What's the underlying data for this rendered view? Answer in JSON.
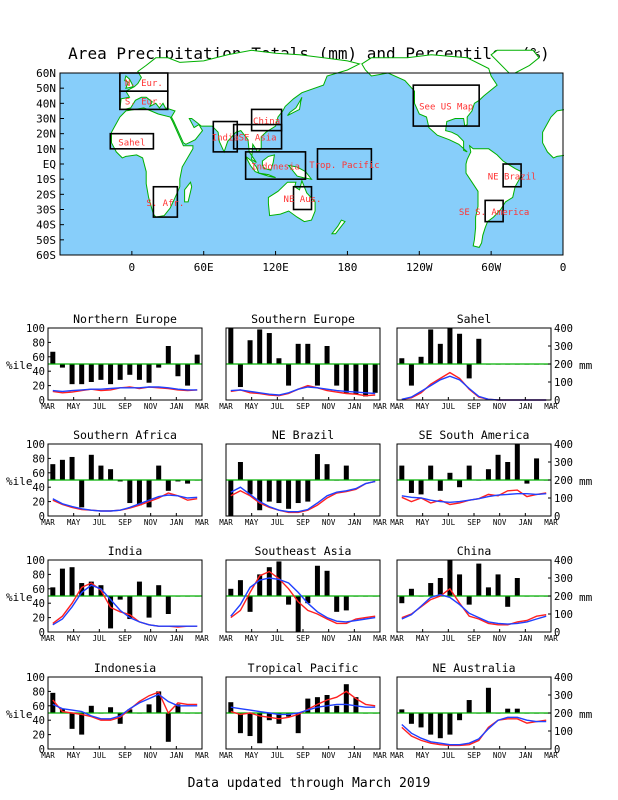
{
  "title": "Area Precipitation Totals (mm) and Percentiles (%)",
  "footer": "Data updated through March 2019",
  "colors": {
    "ocean": "#87cefa",
    "land": "#ffffff",
    "coast": "#00b000",
    "region_label": "#ff3333",
    "percentile_line": "#00b000",
    "red_series": "#ff2020",
    "blue_series": "#2040ff",
    "bars": "#000000"
  },
  "map": {
    "lat_labels": [
      "60N",
      "50N",
      "40N",
      "30N",
      "20N",
      "10N",
      "EQ",
      "10S",
      "20S",
      "30S",
      "40S",
      "50S",
      "60S"
    ],
    "lon_labels": [
      "0",
      "60E",
      "120E",
      "180",
      "120W",
      "60W",
      "0"
    ],
    "regions": [
      {
        "label": "N. Eur.",
        "lon": [
          -10,
          30
        ],
        "lat": [
          48,
          60
        ]
      },
      {
        "label": "S. Eur.",
        "lon": [
          -10,
          30
        ],
        "lat": [
          36,
          48
        ]
      },
      {
        "label": "Sahel",
        "lon": [
          -18,
          18
        ],
        "lat": [
          10,
          20
        ]
      },
      {
        "label": "India",
        "lon": [
          68,
          88
        ],
        "lat": [
          8,
          28
        ]
      },
      {
        "label": "China",
        "lon": [
          100,
          125
        ],
        "lat": [
          22,
          36
        ]
      },
      {
        "label": "SE Asia",
        "lon": [
          85,
          125
        ],
        "lat": [
          10,
          26
        ]
      },
      {
        "label": "Indonesia",
        "lon": [
          95,
          145
        ],
        "lat": [
          -10,
          8
        ]
      },
      {
        "label": "Trop. Pacific",
        "lon": [
          155,
          200
        ],
        "lat": [
          -10,
          10
        ]
      },
      {
        "label": "NE Aus.",
        "lon": [
          135,
          150
        ],
        "lat": [
          -30,
          -15
        ]
      },
      {
        "label": "S. Afr.",
        "lon": [
          18,
          38
        ],
        "lat": [
          -35,
          -15
        ]
      },
      {
        "label": "See US Map",
        "lon": [
          235,
          290
        ],
        "lat": [
          25,
          52
        ]
      },
      {
        "label": "NE Brazil",
        "lon": [
          310,
          325
        ],
        "lat": [
          -15,
          0
        ]
      },
      {
        "label": "SE S. America",
        "lon": [
          295,
          310
        ],
        "lat": [
          -38,
          -24
        ]
      }
    ]
  },
  "axes": {
    "left_label": "%ile",
    "right_label": "mm",
    "left_ticks": [
      "0",
      "20",
      "40",
      "60",
      "80",
      "100"
    ],
    "right_ticks": [
      "0",
      "100",
      "200",
      "300",
      "400"
    ],
    "months": [
      "MAR",
      "MAY",
      "JUL",
      "SEP",
      "NOV",
      "JAN",
      "MAR"
    ]
  },
  "chart_data": [
    {
      "type": "bar",
      "title": "Northern Europe",
      "ylim_percentile": [
        0,
        100
      ],
      "ylim_mm": [
        0,
        400
      ],
      "percentiles": [
        67,
        45,
        22,
        22,
        25,
        28,
        22,
        28,
        35,
        28,
        24,
        45,
        75,
        33,
        20,
        63
      ],
      "series": [
        {
          "values": [
            12,
            10,
            11,
            13,
            15,
            13,
            14,
            17,
            18,
            16,
            18,
            17,
            16,
            14,
            13,
            14
          ]
        },
        {
          "values": [
            13,
            12,
            13,
            14,
            15,
            15,
            16,
            17,
            17,
            17,
            18,
            18,
            17,
            15,
            14,
            14
          ]
        }
      ]
    },
    {
      "type": "bar",
      "title": "Southern Europe",
      "ylim_percentile": [
        0,
        100
      ],
      "ylim_mm": [
        0,
        400
      ],
      "percentiles": [
        100,
        18,
        83,
        98,
        93,
        58,
        20,
        78,
        78,
        20,
        75,
        20,
        10,
        8,
        5,
        10
      ],
      "series": [
        {
          "values": [
            12,
            14,
            10,
            9,
            7,
            6,
            9,
            15,
            20,
            17,
            13,
            11,
            9,
            8,
            6,
            7
          ]
        },
        {
          "values": [
            13,
            14,
            12,
            10,
            8,
            7,
            10,
            15,
            18,
            17,
            15,
            13,
            12,
            11,
            10,
            9
          ]
        }
      ]
    },
    {
      "type": "bar",
      "title": "Sahel",
      "ylim_percentile": [
        0,
        100
      ],
      "ylim_mm": [
        0,
        400
      ],
      "percentiles": [
        58,
        20,
        60,
        98,
        78,
        100,
        92,
        30,
        85,
        50,
        50,
        50,
        50,
        50,
        50,
        50
      ],
      "series": [
        {
          "values": [
            1,
            3,
            10,
            22,
            30,
            38,
            30,
            15,
            4,
            1,
            0,
            0,
            0,
            0,
            0,
            0
          ]
        },
        {
          "values": [
            1,
            4,
            12,
            20,
            28,
            33,
            28,
            16,
            5,
            1,
            0,
            0,
            0,
            0,
            0,
            0
          ]
        }
      ]
    },
    {
      "type": "bar",
      "title": "Southern Africa",
      "ylim_percentile": [
        0,
        100
      ],
      "ylim_mm": [
        0,
        400
      ],
      "percentiles": [
        72,
        78,
        82,
        12,
        85,
        70,
        65,
        48,
        18,
        15,
        12,
        70,
        35,
        48,
        45,
        50
      ],
      "series": [
        {
          "values": [
            22,
            16,
            12,
            9,
            8,
            7,
            7,
            8,
            11,
            15,
            20,
            25,
            32,
            28,
            22,
            24
          ]
        },
        {
          "values": [
            24,
            17,
            13,
            10,
            8,
            7,
            7,
            8,
            12,
            17,
            22,
            27,
            29,
            28,
            25,
            26
          ]
        }
      ]
    },
    {
      "type": "bar",
      "title": "NE Brazil",
      "ylim_percentile": [
        0,
        100
      ],
      "ylim_mm": [
        0,
        400
      ],
      "percentiles": [
        0,
        75,
        30,
        8,
        20,
        18,
        10,
        18,
        20,
        86,
        72,
        50,
        70,
        50,
        50,
        50
      ],
      "series": [
        {
          "values": [
            28,
            35,
            28,
            18,
            12,
            8,
            5,
            5,
            8,
            15,
            25,
            32,
            34,
            37,
            45,
            48
          ]
        },
        {
          "values": [
            33,
            40,
            30,
            20,
            13,
            8,
            6,
            6,
            9,
            18,
            28,
            33,
            35,
            38,
            45,
            48
          ]
        }
      ]
    },
    {
      "type": "bar",
      "title": "SE South America",
      "ylim_percentile": [
        0,
        100
      ],
      "ylim_mm": [
        0,
        400
      ],
      "percentiles": [
        70,
        32,
        30,
        70,
        35,
        60,
        40,
        70,
        50,
        65,
        85,
        75,
        100,
        45,
        80,
        50
      ],
      "series": [
        {
          "values": [
            26,
            20,
            25,
            18,
            22,
            16,
            18,
            22,
            24,
            30,
            28,
            35,
            36,
            27,
            30,
            32
          ]
        },
        {
          "values": [
            28,
            26,
            25,
            22,
            20,
            19,
            20,
            22,
            24,
            27,
            29,
            30,
            31,
            31,
            30,
            31
          ]
        }
      ]
    },
    {
      "type": "bar",
      "title": "India",
      "ylim_percentile": [
        0,
        100
      ],
      "ylim_mm": [
        0,
        400
      ],
      "percentiles": [
        62,
        88,
        90,
        68,
        70,
        65,
        5,
        45,
        18,
        70,
        20,
        65,
        25,
        50,
        50,
        50
      ],
      "series": [
        {
          "values": [
            12,
            22,
            40,
            62,
            68,
            58,
            34,
            28,
            24,
            14,
            10,
            8,
            8,
            7,
            8,
            8
          ]
        },
        {
          "values": [
            10,
            18,
            35,
            55,
            65,
            60,
            45,
            30,
            20,
            14,
            10,
            8,
            8,
            8,
            8,
            8
          ]
        }
      ]
    },
    {
      "type": "bar",
      "title": "Southeast Asia",
      "ylim_percentile": [
        0,
        100
      ],
      "ylim_mm": [
        0,
        400
      ],
      "percentiles": [
        60,
        72,
        28,
        80,
        90,
        98,
        38,
        0,
        40,
        92,
        85,
        28,
        30,
        50,
        50,
        50
      ],
      "series": [
        {
          "values": [
            20,
            30,
            55,
            78,
            84,
            74,
            60,
            42,
            30,
            25,
            18,
            12,
            12,
            18,
            20,
            22
          ]
        },
        {
          "values": [
            22,
            38,
            62,
            72,
            75,
            73,
            68,
            55,
            40,
            28,
            20,
            15,
            14,
            16,
            18,
            20
          ]
        }
      ]
    },
    {
      "type": "bar",
      "title": "China",
      "ylim_percentile": [
        0,
        100
      ],
      "ylim_mm": [
        0,
        400
      ],
      "percentiles": [
        40,
        60,
        50,
        68,
        75,
        100,
        80,
        38,
        95,
        62,
        80,
        35,
        75,
        50,
        50,
        50
      ],
      "series": [
        {
          "values": [
            20,
            25,
            35,
            45,
            50,
            60,
            40,
            22,
            18,
            12,
            10,
            10,
            14,
            16,
            22,
            24
          ]
        },
        {
          "values": [
            18,
            24,
            36,
            48,
            52,
            48,
            38,
            26,
            20,
            14,
            12,
            11,
            12,
            14,
            18,
            22
          ]
        }
      ]
    },
    {
      "type": "bar",
      "title": "Indonesia",
      "ylim_percentile": [
        0,
        100
      ],
      "ylim_mm": [
        0,
        400
      ],
      "percentiles": [
        78,
        55,
        28,
        20,
        60,
        50,
        58,
        35,
        55,
        50,
        62,
        80,
        10,
        62,
        50,
        50
      ],
      "series": [
        {
          "values": [
            68,
            52,
            50,
            48,
            45,
            40,
            40,
            44,
            55,
            66,
            74,
            79,
            50,
            64,
            62,
            62
          ]
        },
        {
          "values": [
            62,
            56,
            54,
            52,
            46,
            42,
            42,
            46,
            56,
            64,
            70,
            76,
            66,
            60,
            60,
            60
          ]
        }
      ]
    },
    {
      "type": "bar",
      "title": "Tropical Pacific",
      "ylim_percentile": [
        0,
        100
      ],
      "ylim_mm": [
        0,
        400
      ],
      "percentiles": [
        65,
        22,
        18,
        8,
        40,
        35,
        45,
        22,
        70,
        72,
        75,
        60,
        90,
        72,
        50,
        50
      ],
      "series": [
        {
          "values": [
            52,
            48,
            50,
            46,
            44,
            42,
            44,
            48,
            55,
            62,
            68,
            72,
            80,
            70,
            62,
            60
          ]
        },
        {
          "values": [
            58,
            56,
            54,
            52,
            50,
            48,
            48,
            50,
            54,
            58,
            60,
            62,
            62,
            60,
            58,
            58
          ]
        }
      ]
    },
    {
      "type": "bar",
      "title": "NE Australia",
      "ylim_percentile": [
        0,
        100
      ],
      "ylim_mm": [
        0,
        400
      ],
      "percentiles": [
        55,
        35,
        30,
        20,
        15,
        20,
        40,
        68,
        50,
        85,
        50,
        56,
        56,
        50,
        50,
        50
      ],
      "series": [
        {
          "values": [
            30,
            18,
            12,
            8,
            6,
            5,
            5,
            6,
            12,
            30,
            40,
            42,
            42,
            36,
            38,
            40
          ]
        },
        {
          "values": [
            34,
            22,
            15,
            10,
            8,
            6,
            6,
            8,
            14,
            28,
            40,
            44,
            44,
            40,
            38,
            38
          ]
        }
      ]
    }
  ]
}
